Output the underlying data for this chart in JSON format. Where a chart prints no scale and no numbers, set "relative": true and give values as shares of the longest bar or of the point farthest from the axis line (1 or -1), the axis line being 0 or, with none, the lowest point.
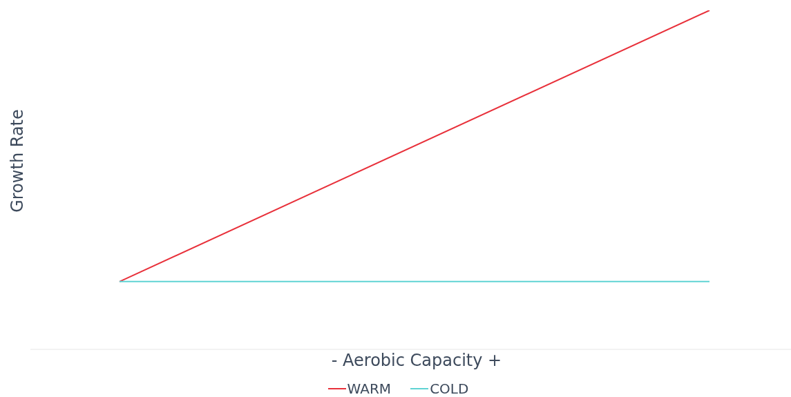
{
  "chart_data": {
    "type": "line",
    "xlabel": "- Aerobic Capacity +",
    "ylabel": "Growth Rate",
    "relative": true,
    "categories": [
      null,
      null
    ],
    "series": [
      {
        "name": "WARM",
        "color": "#e8303a",
        "values": [
          0.2,
          1
        ]
      },
      {
        "name": "COLD",
        "color": "#5fd3d3",
        "values": [
          0.2,
          0.2
        ]
      }
    ],
    "legend": "bottom",
    "grid": false,
    "marker": "none",
    "line_style": "solid"
  }
}
